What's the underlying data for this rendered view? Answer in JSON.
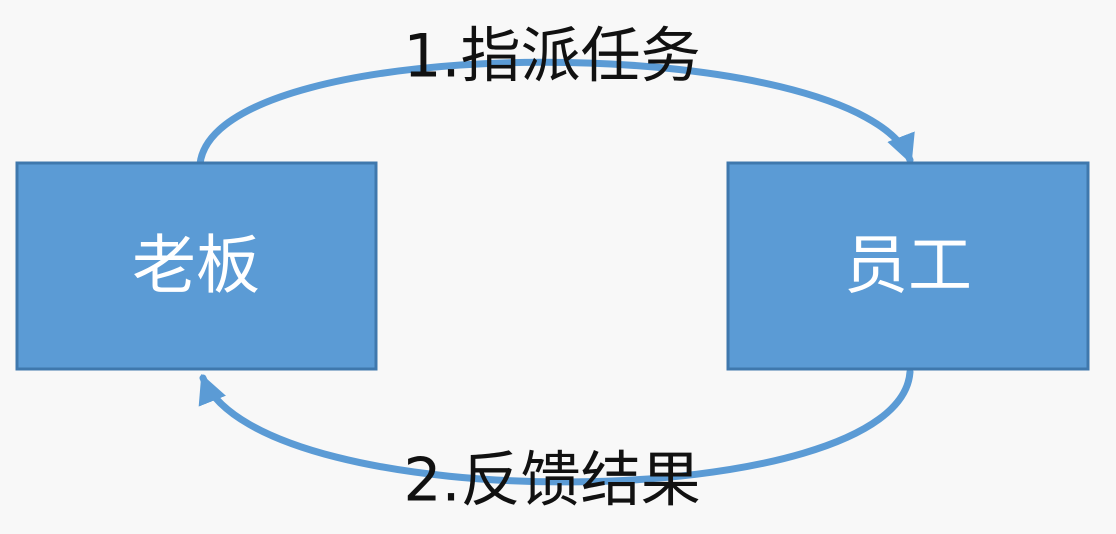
{
  "colors": {
    "background": "#f8f8f8",
    "node_fill": "#5b9bd5",
    "node_border": "#3f78ad",
    "arrow": "#5b9bd5",
    "node_text": "#ffffff",
    "edge_text": "#111111"
  },
  "nodes": {
    "boss": {
      "label": "老板"
    },
    "employee": {
      "label": "员工"
    }
  },
  "edges": {
    "assign_task": {
      "label": "1.指派任务"
    },
    "feedback_result": {
      "label": "2.反馈结果"
    }
  }
}
